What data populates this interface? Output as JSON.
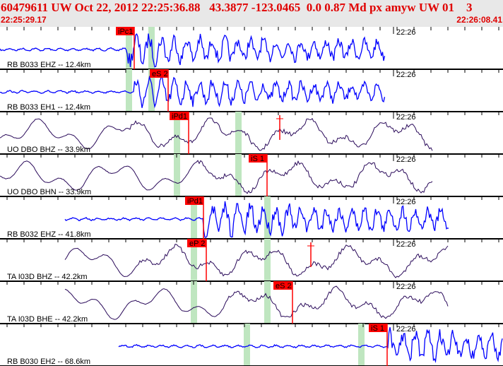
{
  "header": {
    "title": "60479611 UW Oct 22, 2012 22:25:36.88   43.3877 -123.0465  0.0 0.87 Md px amyw UW 01    3",
    "start_time": "22:25:29.17",
    "end_time": "22:26:08.41"
  },
  "colors": {
    "pick": "#ff0000",
    "window": "#bfe6c0",
    "trace_bb": "#0000ff",
    "trace_dark": "#2a0a5a",
    "text": "#e00000"
  },
  "time_tick_label": "22:26",
  "panels": [
    {
      "station": "RB B033 EHZ -- 12.4km",
      "pick": "iPc1"
    },
    {
      "station": "RB B033 EH1 -- 12.4km",
      "pick": "eS 2"
    },
    {
      "station": "UO DBO BHZ -- 33.9km",
      "pick": "iPd1"
    },
    {
      "station": "UO DBO BHN -- 33.9km",
      "pick": "iS 1"
    },
    {
      "station": "RB B032 EHZ -- 41.8km",
      "pick": "iPd1"
    },
    {
      "station": "TA I03D BHZ -- 42.2km",
      "pick": "eP 2"
    },
    {
      "station": "TA I03D BHE -- 42.2km",
      "pick": "eS 2"
    },
    {
      "station": "RB B030 EH2 -- 68.6km",
      "pick": "iS 1"
    }
  ]
}
